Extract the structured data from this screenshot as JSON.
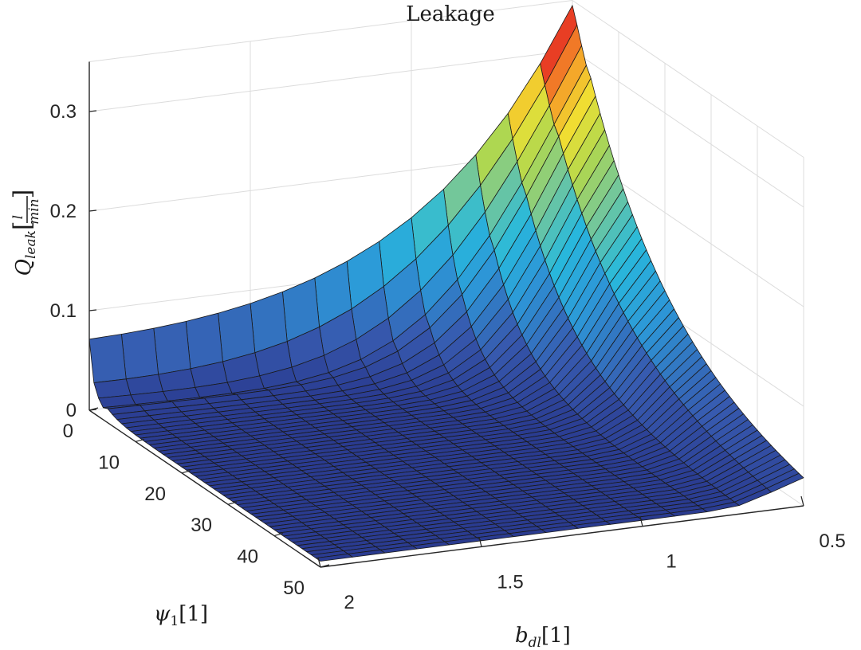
{
  "chart_data": {
    "type": "surface",
    "title": "Leakage",
    "xlabel": {
      "symbol": "b",
      "subscript": "dl",
      "unit": "[1]"
    },
    "ylabel": {
      "symbol": "ψ",
      "subscript": "1",
      "unit": "[1]"
    },
    "zlabel": {
      "symbol": "Q",
      "subscript": "leak",
      "unit_numerator": "l",
      "unit_denominator": "min"
    },
    "xlim": [
      0.5,
      2
    ],
    "ylim": [
      0,
      50
    ],
    "zlim": [
      0,
      0.3
    ],
    "x_ticks": [
      "0.5",
      "1",
      "1.5",
      "2"
    ],
    "y_ticks": [
      "0",
      "10",
      "20",
      "30",
      "40",
      "50"
    ],
    "z_ticks": [
      "0",
      "0.1",
      "0.2",
      "0.3"
    ],
    "grid": true,
    "colormap": "parula-jet",
    "surface_grid": {
      "x_count": 16,
      "y_count": 51
    },
    "peak": {
      "x": 0.5,
      "y": 0,
      "z": 0.35
    },
    "shading": "faceted",
    "edge_color": "#1a1a1a"
  }
}
